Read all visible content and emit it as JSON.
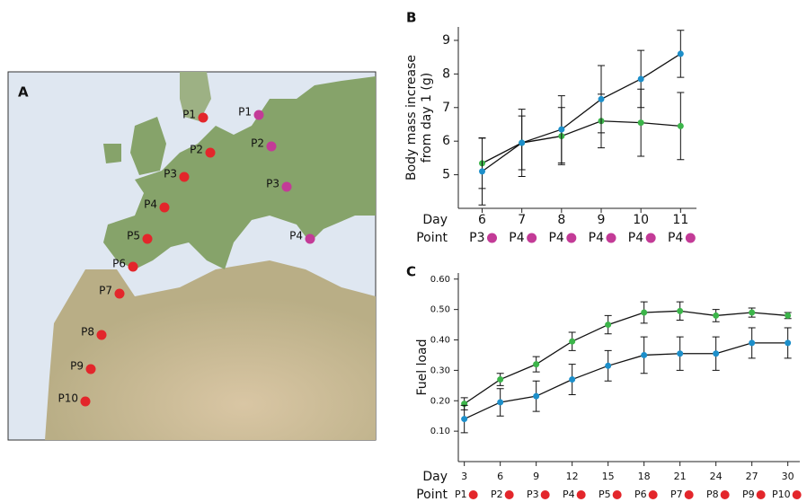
{
  "map": {
    "panel": "A",
    "red_color": "#e3262b",
    "magenta_color": "#c33b97",
    "red_points": [
      "P1",
      "P2",
      "P3",
      "P4",
      "P5",
      "P6",
      "P7",
      "P8",
      "P9",
      "P10"
    ],
    "magenta_points": [
      "P1",
      "P2",
      "P3",
      "P4"
    ]
  },
  "chart_data": [
    {
      "type": "line",
      "panel": "B",
      "ylabel": [
        "Body mass increase",
        "from day 1 (g)"
      ],
      "x_row_label": "Day",
      "point_row_label": "Point",
      "x": [
        6,
        7,
        8,
        9,
        10,
        11
      ],
      "xlim": [
        5.4,
        11.4
      ],
      "xticks": [
        6,
        7,
        8,
        9,
        10,
        11
      ],
      "ylim": [
        4,
        9.4
      ],
      "yticks": [
        5,
        6,
        7,
        8,
        9
      ],
      "points": [
        "P3",
        "P4",
        "P4",
        "P4",
        "P4",
        "P4"
      ],
      "point_color": "#c33b97",
      "series": [
        {
          "color": "#3cb54a",
          "values": [
            5.34,
            5.95,
            6.15,
            6.6,
            6.55,
            6.45
          ],
          "errors": [
            0.75,
            0.8,
            0.85,
            0.8,
            1.0,
            1.0
          ]
        },
        {
          "color": "#1d8fca",
          "values": [
            5.1,
            5.95,
            6.35,
            7.25,
            7.85,
            8.6
          ],
          "errors": [
            1.0,
            1.0,
            1.0,
            1.0,
            0.85,
            0.7
          ]
        }
      ]
    },
    {
      "type": "line",
      "panel": "C",
      "ylabel": [
        "Fuel load"
      ],
      "x_row_label": "Day",
      "point_row_label": "Point",
      "x": [
        3,
        6,
        9,
        12,
        15,
        18,
        21,
        24,
        27,
        30
      ],
      "xlim": [
        2.5,
        31
      ],
      "xticks": [
        3,
        6,
        9,
        12,
        15,
        18,
        21,
        24,
        27,
        30
      ],
      "ylim": [
        0,
        0.62
      ],
      "yticks": [
        {
          "value": 0.1,
          "label": "0.10"
        },
        {
          "value": 0.2,
          "label": "0.20"
        },
        {
          "value": 0.3,
          "label": "0.30"
        },
        {
          "value": 0.4,
          "label": "0.40"
        },
        {
          "value": 0.5,
          "label": "0.50"
        },
        {
          "value": 0.6,
          "label": "0.60"
        }
      ],
      "points": [
        "P1",
        "P2",
        "P3",
        "P4",
        "P5",
        "P6",
        "P7",
        "P8",
        "P9",
        "P10"
      ],
      "point_color": "#e3262b",
      "series": [
        {
          "color": "#3cb54a",
          "values": [
            0.19,
            0.27,
            0.32,
            0.395,
            0.45,
            0.49,
            0.495,
            0.48,
            0.49,
            0.48
          ],
          "errors": [
            0.02,
            0.02,
            0.025,
            0.03,
            0.03,
            0.035,
            0.03,
            0.02,
            0.015,
            0.01
          ]
        },
        {
          "color": "#1d8fca",
          "values": [
            0.14,
            0.195,
            0.215,
            0.27,
            0.315,
            0.35,
            0.355,
            0.355,
            0.39,
            0.39
          ],
          "errors": [
            0.045,
            0.045,
            0.05,
            0.05,
            0.05,
            0.06,
            0.055,
            0.055,
            0.05,
            0.05
          ]
        }
      ]
    }
  ]
}
